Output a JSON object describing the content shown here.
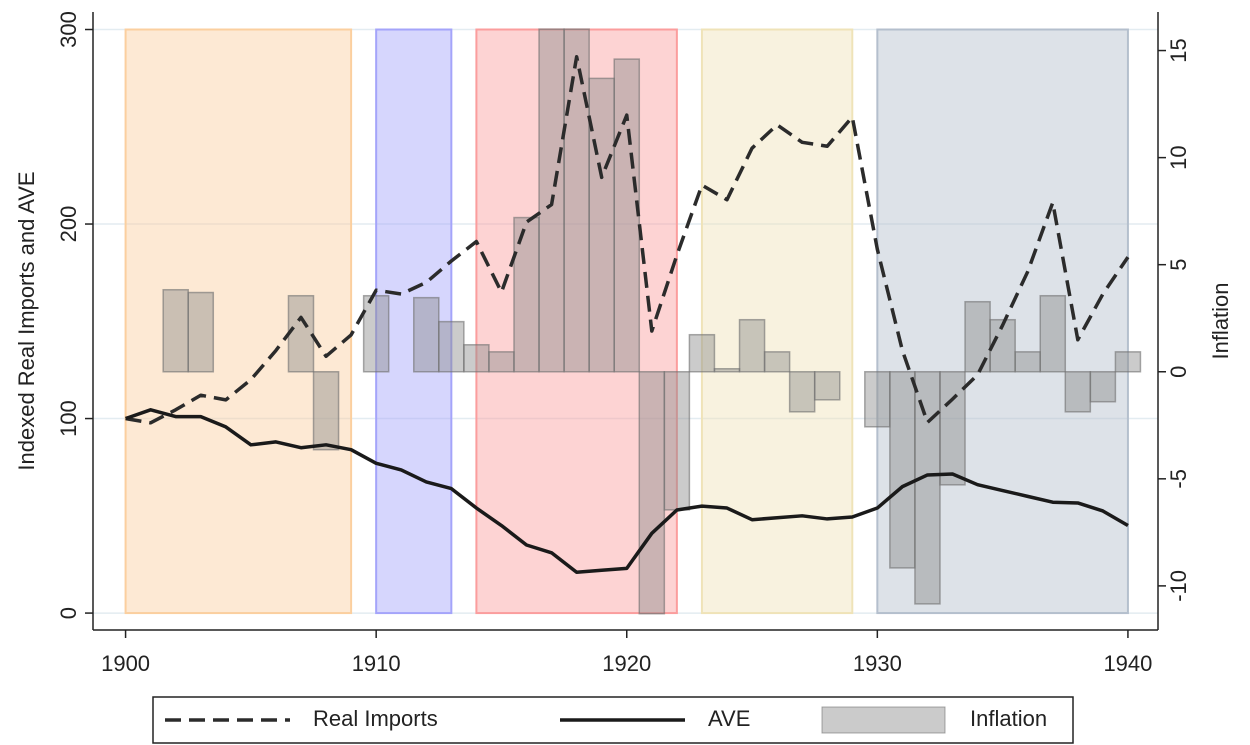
{
  "chart_data": {
    "type": "combo",
    "ylabel": "Indexed Real Imports and AVE",
    "y2label": "Inflation",
    "x": [
      1900,
      1901,
      1902,
      1903,
      1904,
      1905,
      1906,
      1907,
      1908,
      1909,
      1910,
      1911,
      1912,
      1913,
      1914,
      1915,
      1916,
      1917,
      1918,
      1919,
      1920,
      1921,
      1922,
      1923,
      1924,
      1925,
      1926,
      1927,
      1928,
      1929,
      1930,
      1931,
      1932,
      1933,
      1934,
      1935,
      1936,
      1937,
      1938,
      1939,
      1940
    ],
    "xlim": [
      1898.7,
      1941.2
    ],
    "xticks": [
      1900,
      1910,
      1920,
      1930,
      1940
    ],
    "ylim": [
      -8.7,
      309
    ],
    "yticks": [
      0,
      100,
      200,
      300
    ],
    "y2lim": [
      -12.06,
      16.8
    ],
    "y2ticks": [
      -10,
      -5,
      0,
      5,
      10,
      15
    ],
    "grid": true,
    "legend": "bottom",
    "series": [
      {
        "name": "Real Imports",
        "type": "line",
        "line_style": "dashed",
        "color": "#2b2b2b",
        "values": [
          100,
          97.8,
          104.5,
          112,
          109.6,
          120,
          135,
          152,
          132,
          143,
          166,
          164,
          170,
          181,
          191,
          165,
          201,
          210,
          286,
          224,
          256,
          145,
          184,
          220,
          212.5,
          239,
          251,
          242,
          240,
          255,
          187,
          135,
          98,
          110,
          122.5,
          148,
          175.5,
          211,
          140.5,
          164,
          183
        ]
      },
      {
        "name": "AVE",
        "type": "line",
        "line_style": "solid",
        "color": "#1a1a1a",
        "values": [
          100,
          104.5,
          101,
          101,
          95.7,
          86.5,
          88,
          85,
          86.5,
          84,
          77,
          73.6,
          67.4,
          64,
          54,
          45,
          35,
          31,
          21,
          22,
          23,
          41,
          53,
          55,
          54,
          48,
          49,
          50,
          48.4,
          49.4,
          54,
          65,
          71,
          71.5,
          66,
          63,
          60,
          57,
          56.6,
          52.5,
          45
        ]
      },
      {
        "name": "Inflation",
        "type": "bar",
        "axis": "y2",
        "color": "#8c8c8c",
        "values": [
          null,
          null,
          3.83,
          3.7,
          null,
          null,
          null,
          3.55,
          -3.64,
          null,
          3.55,
          null,
          3.46,
          2.34,
          1.26,
          0.93,
          7.2,
          16,
          16,
          13.7,
          14.6,
          -11.3,
          -6.45,
          1.73,
          0.14,
          2.43,
          0.93,
          -1.87,
          -1.31,
          null,
          -2.57,
          -9.16,
          -10.84,
          -5.28,
          3.27,
          2.43,
          0.93,
          3.55,
          -1.87,
          -1.4,
          0.93
        ]
      }
    ],
    "periods": [
      {
        "start": 1900,
        "end": 1909,
        "color": "#fbcf9f"
      },
      {
        "start": 1910,
        "end": 1913,
        "color": "#a4a4fa"
      },
      {
        "start": 1914,
        "end": 1922,
        "color": "#fb9d9d"
      },
      {
        "start": 1923,
        "end": 1929,
        "color": "#efe3b8"
      },
      {
        "start": 1930,
        "end": 1940,
        "color": "#b4bfcd"
      }
    ]
  }
}
